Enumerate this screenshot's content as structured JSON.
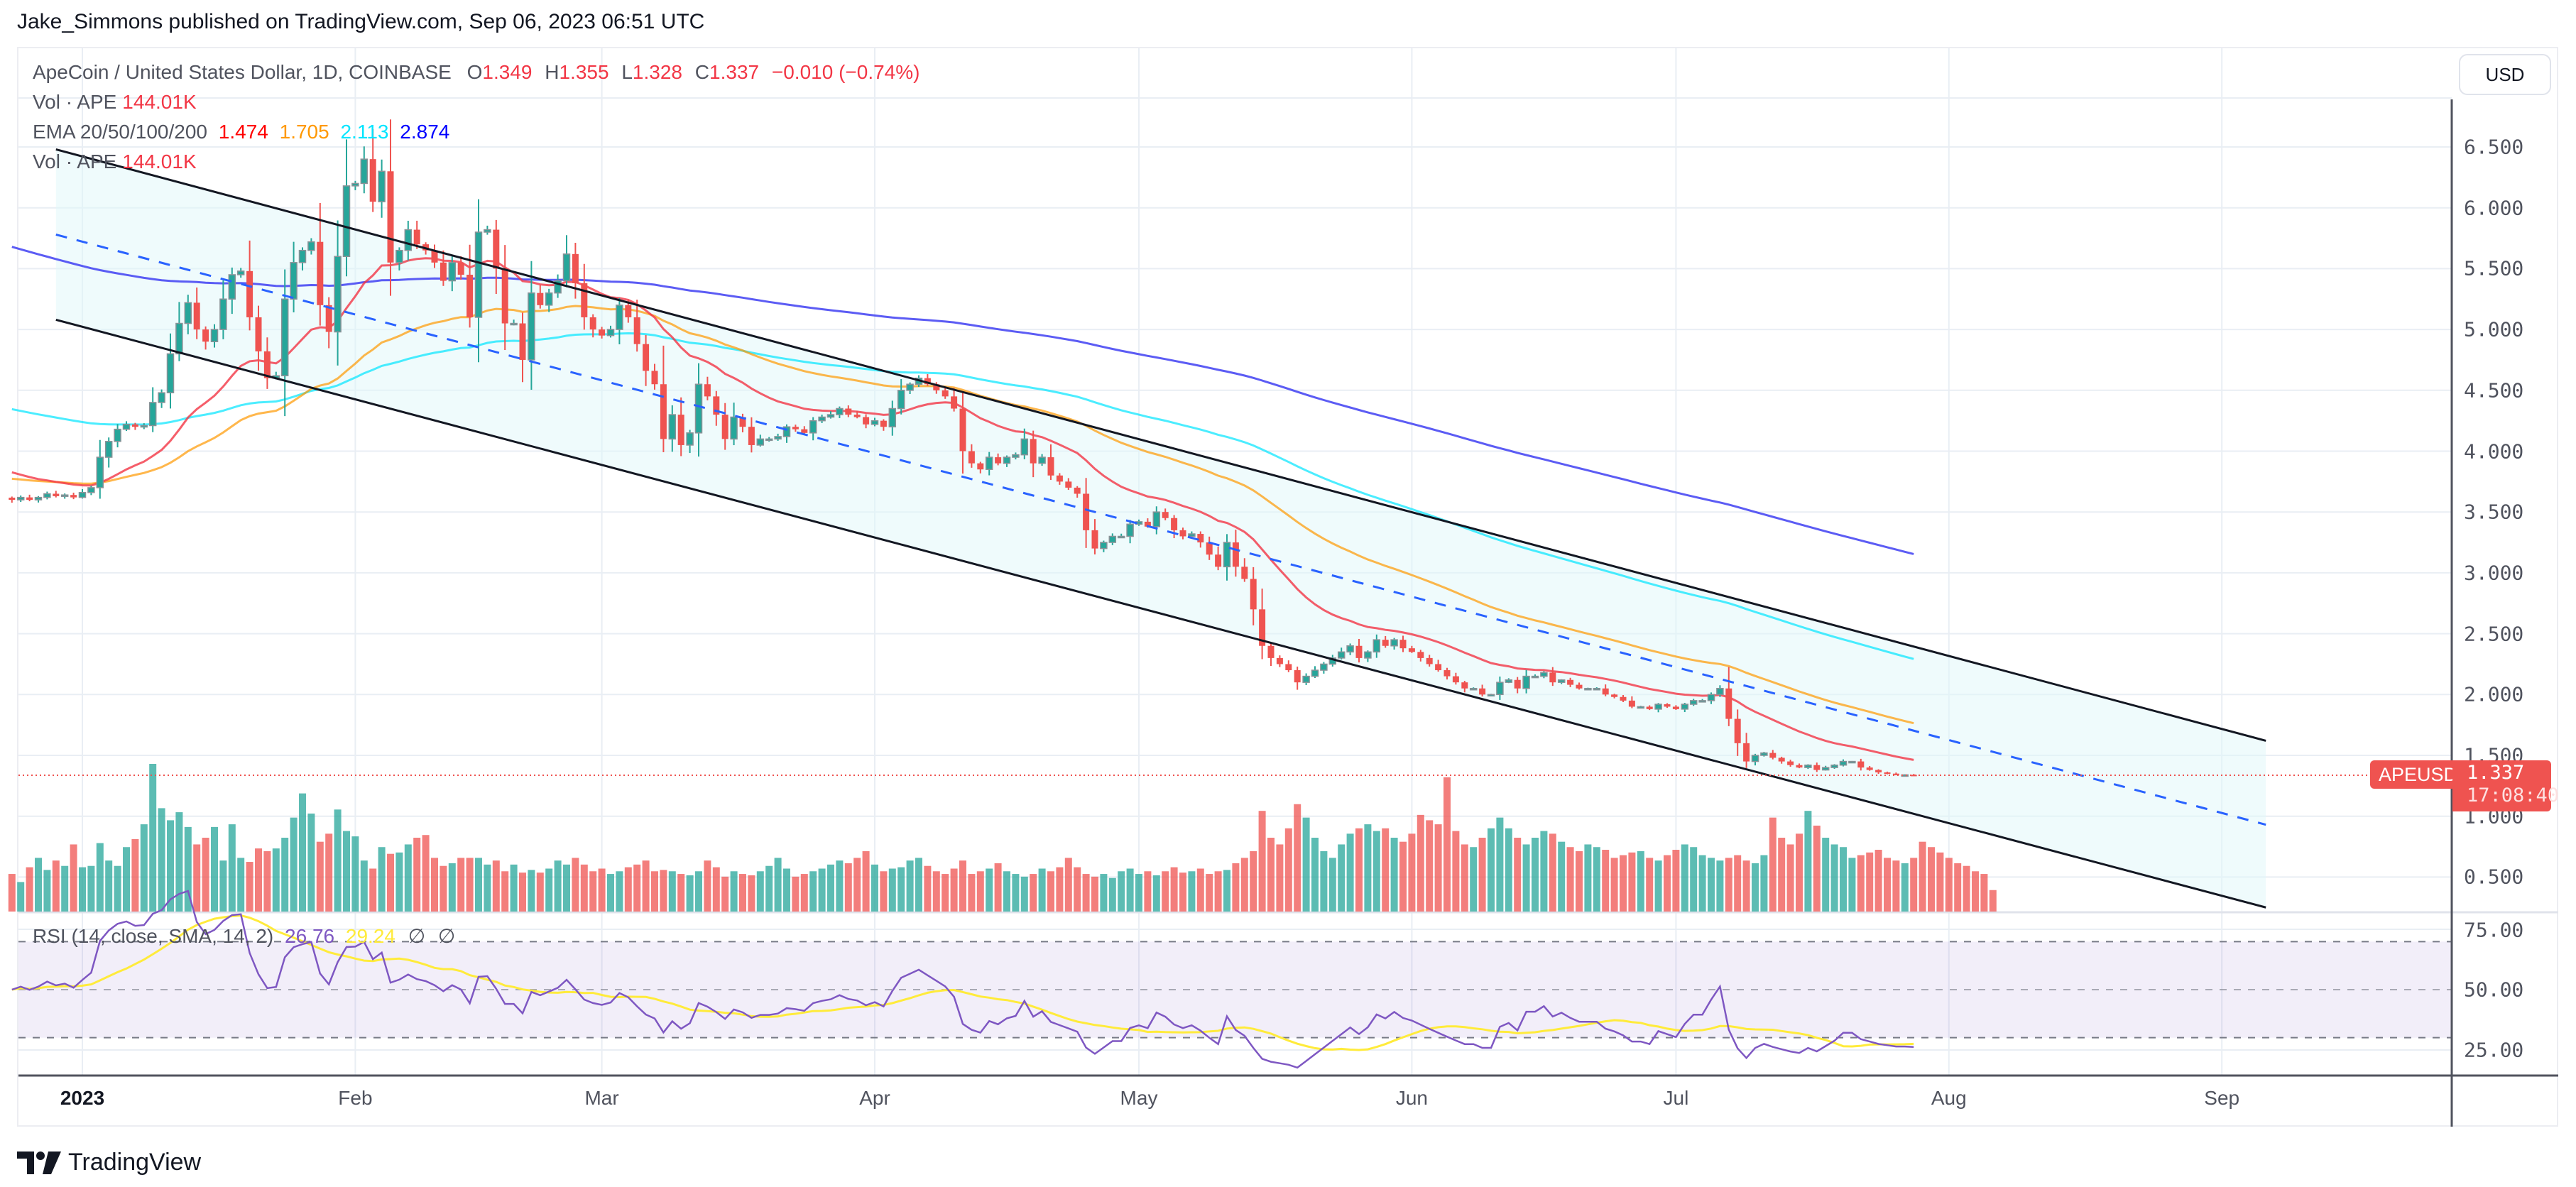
{
  "header": {
    "published_line": "Jake_Simmons published on TradingView.com, Sep 06, 2023 06:51 UTC"
  },
  "legend": {
    "symbol_line": "ApeCoin / United States Dollar, 1D, COINBASE",
    "open_label": "O",
    "open": "1.349",
    "high_label": "H",
    "high": "1.355",
    "low_label": "L",
    "low": "1.328",
    "close_label": "C",
    "close": "1.337",
    "change": "−0.010 (−0.74%)",
    "vol_label": "Vol · APE",
    "vol_value": "144.01K",
    "ema_label": "EMA 20/50/100/200",
    "ema20": "1.474",
    "ema50": "1.705",
    "ema100": "2.113",
    "ema200": "2.874",
    "vol2_label": "Vol · APE",
    "vol2_value": "144.01K"
  },
  "currency_button": "USD",
  "price_tag": {
    "symbol": "APEUSD",
    "price": "1.337",
    "countdown": "17:08:40"
  },
  "rsi_legend": {
    "label": "RSI (14, close, SMA, 14, 2)",
    "rsi": "26.76",
    "sma": "29.24",
    "extra1": "∅",
    "extra2": "∅"
  },
  "footer": {
    "brand": "TradingView"
  },
  "colors": {
    "up": "#26a69a",
    "down": "#ef5350",
    "ema20": "#f23645",
    "ema50": "#ff9800",
    "ema100": "#00e5ff",
    "ema200": "#3f3ff2",
    "rsi": "#7e57c2",
    "rsi_sma": "#ffeb3b",
    "channel": "#131722",
    "mid": "#2962ff",
    "channel_fill": "#e0f7fa"
  },
  "chart_data": {
    "type": "candlestick",
    "title": "ApeCoin / United States Dollar, 1D, COINBASE",
    "xlabel": "",
    "ylabel": "USD",
    "x_ticks": [
      "2023",
      "Feb",
      "Mar",
      "Apr",
      "May",
      "Jun",
      "Jul",
      "Aug",
      "Sep"
    ],
    "y_ticks": [
      "6.500",
      "6.000",
      "5.500",
      "5.000",
      "4.500",
      "4.000",
      "3.500",
      "3.000",
      "2.500",
      "2.000",
      "1.500",
      "1.000",
      "0.500"
    ],
    "ylim": [
      0.2,
      6.85
    ],
    "rsi_ticks": [
      "75.00",
      "50.00",
      "25.00"
    ],
    "last_price": 1.337,
    "start_day_offset": -8,
    "closes": [
      3.6,
      3.62,
      3.6,
      3.62,
      3.65,
      3.63,
      3.64,
      3.62,
      3.66,
      3.7,
      3.95,
      4.08,
      4.18,
      4.22,
      4.2,
      4.21,
      4.4,
      4.48,
      4.8,
      5.05,
      5.22,
      5.0,
      4.9,
      5.0,
      5.25,
      5.45,
      5.48,
      5.1,
      4.82,
      4.6,
      4.62,
      5.25,
      5.55,
      5.65,
      5.72,
      5.2,
      4.98,
      5.6,
      6.18,
      6.2,
      6.4,
      6.05,
      6.3,
      5.55,
      5.65,
      5.82,
      5.7,
      5.65,
      5.55,
      5.4,
      5.55,
      5.45,
      5.1,
      5.8,
      5.82,
      5.5,
      5.05,
      5.05,
      4.75,
      5.3,
      5.2,
      5.3,
      5.4,
      5.62,
      5.38,
      5.1,
      5.0,
      4.95,
      5.0,
      5.2,
      5.1,
      4.88,
      4.66,
      4.55,
      4.1,
      4.3,
      4.05,
      4.15,
      4.55,
      4.45,
      4.3,
      4.1,
      4.28,
      4.2,
      4.05,
      4.1,
      4.1,
      4.12,
      4.2,
      4.18,
      4.15,
      4.25,
      4.28,
      4.3,
      4.35,
      4.3,
      4.28,
      4.22,
      4.25,
      4.2,
      4.35,
      4.5,
      4.55,
      4.6,
      4.55,
      4.5,
      4.45,
      4.35,
      4.0,
      3.9,
      3.85,
      3.95,
      3.9,
      3.95,
      3.97,
      4.1,
      3.9,
      3.95,
      3.8,
      3.75,
      3.7,
      3.65,
      3.35,
      3.2,
      3.25,
      3.3,
      3.3,
      3.4,
      3.42,
      3.38,
      3.5,
      3.45,
      3.35,
      3.3,
      3.32,
      3.25,
      3.15,
      3.05,
      3.25,
      3.05,
      2.95,
      2.7,
      2.4,
      2.3,
      2.25,
      2.2,
      2.1,
      2.15,
      2.2,
      2.25,
      2.3,
      2.35,
      2.4,
      2.3,
      2.35,
      2.45,
      2.4,
      2.45,
      2.38,
      2.35,
      2.3,
      2.25,
      2.2,
      2.15,
      2.1,
      2.05,
      2.05,
      2.0,
      2.0,
      2.1,
      2.12,
      2.05,
      2.15,
      2.15,
      2.18,
      2.1,
      2.12,
      2.08,
      2.05,
      2.05,
      2.05,
      2.0,
      1.98,
      1.95,
      1.9,
      1.9,
      1.88,
      1.92,
      1.9,
      1.88,
      1.92,
      1.95,
      1.95,
      2.0,
      2.05,
      1.8,
      1.6,
      1.45,
      1.5,
      1.52,
      1.48,
      1.45,
      1.42,
      1.4,
      1.42,
      1.38,
      1.4,
      1.42,
      1.45,
      1.45,
      1.4,
      1.38,
      1.36,
      1.35,
      1.34,
      1.34,
      1.337
    ],
    "volumes": [
      0.28,
      0.22,
      0.33,
      0.4,
      0.31,
      0.38,
      0.34,
      0.5,
      0.33,
      0.34,
      0.51,
      0.38,
      0.34,
      0.48,
      0.54,
      0.65,
      1.1,
      0.77,
      0.68,
      0.74,
      0.63,
      0.5,
      0.55,
      0.63,
      0.38,
      0.65,
      0.4,
      0.37,
      0.47,
      0.45,
      0.47,
      0.55,
      0.7,
      0.88,
      0.73,
      0.52,
      0.58,
      0.76,
      0.6,
      0.56,
      0.38,
      0.32,
      0.48,
      0.43,
      0.44,
      0.5,
      0.55,
      0.57,
      0.4,
      0.34,
      0.36,
      0.4,
      0.4,
      0.4,
      0.35,
      0.38,
      0.3,
      0.35,
      0.29,
      0.31,
      0.29,
      0.32,
      0.38,
      0.35,
      0.4,
      0.35,
      0.3,
      0.32,
      0.28,
      0.3,
      0.33,
      0.35,
      0.38,
      0.3,
      0.31,
      0.3,
      0.28,
      0.27,
      0.3,
      0.38,
      0.33,
      0.26,
      0.3,
      0.28,
      0.27,
      0.3,
      0.34,
      0.4,
      0.32,
      0.26,
      0.28,
      0.3,
      0.32,
      0.35,
      0.38,
      0.36,
      0.4,
      0.45,
      0.35,
      0.3,
      0.32,
      0.33,
      0.38,
      0.4,
      0.34,
      0.3,
      0.28,
      0.32,
      0.38,
      0.28,
      0.3,
      0.32,
      0.36,
      0.3,
      0.28,
      0.26,
      0.28,
      0.32,
      0.3,
      0.33,
      0.4,
      0.33,
      0.28,
      0.26,
      0.28,
      0.25,
      0.3,
      0.32,
      0.28,
      0.3,
      0.27,
      0.3,
      0.33,
      0.29,
      0.3,
      0.32,
      0.28,
      0.3,
      0.31,
      0.36,
      0.4,
      0.45,
      0.75,
      0.55,
      0.5,
      0.62,
      0.8,
      0.7,
      0.55,
      0.45,
      0.4,
      0.5,
      0.58,
      0.62,
      0.65,
      0.6,
      0.62,
      0.55,
      0.52,
      0.58,
      0.72,
      0.68,
      0.65,
      1.0,
      0.6,
      0.5,
      0.48,
      0.55,
      0.62,
      0.7,
      0.62,
      0.55,
      0.5,
      0.55,
      0.6,
      0.58,
      0.52,
      0.48,
      0.45,
      0.5,
      0.48,
      0.46,
      0.4,
      0.42,
      0.44,
      0.45,
      0.4,
      0.38,
      0.42,
      0.46,
      0.5,
      0.48,
      0.42,
      0.4,
      0.38,
      0.4,
      0.42,
      0.38,
      0.36,
      0.42,
      0.7,
      0.55,
      0.5,
      0.58,
      0.75,
      0.64,
      0.55,
      0.5,
      0.48,
      0.4,
      0.42,
      0.44,
      0.46,
      0.4,
      0.38,
      0.36,
      0.4,
      0.52,
      0.48,
      0.44,
      0.4,
      0.36,
      0.34,
      0.3,
      0.28,
      0.16
    ],
    "channel": {
      "upper": [
        [
          -3,
          6.48
        ],
        [
          248,
          1.62
        ]
      ],
      "lower": [
        [
          -3,
          5.08
        ],
        [
          248,
          0.25
        ]
      ],
      "mid_dashed": [
        [
          -3,
          5.78
        ],
        [
          248,
          0.93
        ]
      ]
    },
    "ema_last": {
      "ema20": 1.474,
      "ema50": 1.705,
      "ema100": 2.113,
      "ema200": 2.874
    },
    "rsi_last": 26.76,
    "rsi_sma_last": 29.24
  }
}
